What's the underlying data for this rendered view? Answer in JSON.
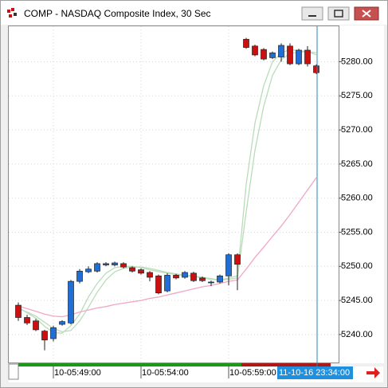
{
  "chart_data": {
    "type": "candlestick",
    "title": "COMP - NASDAQ Composite Index, 30 Sec",
    "categories": [
      null,
      null,
      null,
      null,
      "10-05:49:00",
      null,
      null,
      null,
      null,
      null,
      null,
      null,
      null,
      null,
      "10-05:54:00",
      null,
      null,
      null,
      null,
      null,
      null,
      null,
      null,
      null,
      "10-05:59:00",
      null,
      null,
      null,
      null,
      null,
      null,
      null,
      null,
      null,
      null
    ],
    "open": [
      5244.3,
      5242.5,
      5242.0,
      5240.5,
      5239.4,
      5241.5,
      5241.7,
      5247.8,
      5249.2,
      5249.3,
      5250.2,
      5250.2,
      5250.4,
      5249.8,
      5249.5,
      5249.1,
      5248.6,
      5246.4,
      5248.7,
      5248.4,
      5249.0,
      5248.3,
      5247.6,
      5247.7,
      5248.6,
      5251.7,
      5283.3,
      5282.3,
      5281.8,
      5280.6,
      5280.7,
      5282.3,
      5279.7,
      5281.7,
      5279.4
    ],
    "high": [
      5244.7,
      5242.9,
      5242.3,
      5240.7,
      5241.3,
      5242.1,
      5248.0,
      5249.6,
      5250.0,
      5250.6,
      5250.6,
      5250.7,
      5250.6,
      5250.0,
      5249.7,
      5249.3,
      5248.8,
      5249.0,
      5248.9,
      5249.3,
      5249.2,
      5248.5,
      5247.9,
      5248.8,
      5251.9,
      5251.9,
      5283.5,
      5282.5,
      5282.0,
      5281.5,
      5282.7,
      5282.7,
      5281.9,
      5282.3,
      5279.6
    ],
    "low": [
      5242.0,
      5241.4,
      5240.5,
      5237.7,
      5239.0,
      5241.3,
      5241.5,
      5247.5,
      5249.0,
      5249.1,
      5250.0,
      5250.0,
      5249.7,
      5249.1,
      5248.8,
      5247.8,
      5245.9,
      5246.2,
      5248.1,
      5248.2,
      5247.7,
      5247.7,
      5247.1,
      5247.5,
      5247.2,
      5246.5,
      5281.9,
      5280.8,
      5280.2,
      5280.4,
      5280.0,
      5279.5,
      5279.5,
      5279.3,
      5278.2
    ],
    "close": [
      5242.5,
      5241.7,
      5240.7,
      5239.2,
      5241.0,
      5241.9,
      5247.8,
      5249.3,
      5249.6,
      5250.4,
      5250.4,
      5250.5,
      5249.9,
      5249.3,
      5249.0,
      5248.4,
      5246.1,
      5248.7,
      5248.3,
      5249.1,
      5247.9,
      5247.9,
      5247.7,
      5248.6,
      5251.7,
      5250.3,
      5282.1,
      5281.0,
      5280.4,
      5281.3,
      5282.4,
      5279.7,
      5281.7,
      5279.7,
      5278.4
    ],
    "up_color": "#1f6fd6",
    "down_color": "#cc1010",
    "series": [
      {
        "color": "#b9dcb9",
        "values": [
          5244.0,
          5243.2,
          5242.4,
          5241.2,
          5240.3,
          5240.2,
          5241.3,
          5243.0,
          5245.5,
          5247.5,
          5249.0,
          5249.8,
          5250.0,
          5250.0,
          5249.8,
          5249.5,
          5249.2,
          5249.0,
          5248.8,
          5248.6,
          5248.5,
          5248.3,
          5248.1,
          5248.0,
          5248.3,
          5248.6,
          5262.0,
          5271.0,
          5276.5,
          5280.0,
          5281.3,
          5281.8,
          5281.6,
          5281.5,
          5281.0
        ]
      },
      {
        "color": "#b9dcb9",
        "values": [
          5243.8,
          5243.3,
          5242.7,
          5241.8,
          5240.9,
          5240.4,
          5240.6,
          5242.0,
          5244.0,
          5246.2,
          5248.0,
          5249.2,
          5249.7,
          5249.9,
          5249.9,
          5249.7,
          5249.4,
          5249.1,
          5248.9,
          5248.7,
          5248.6,
          5248.4,
          5248.2,
          5248.0,
          5248.1,
          5248.3,
          5258.0,
          5267.0,
          5273.5,
          5278.0,
          5280.3,
          5281.2,
          5281.4,
          5281.5,
          5281.3
        ]
      },
      {
        "color": "#f2a6c8",
        "values": [
          5244.2,
          5243.8,
          5243.4,
          5243.0,
          5242.7,
          5242.6,
          5242.9,
          5243.3,
          5243.6,
          5243.9,
          5244.1,
          5244.4,
          5244.6,
          5244.8,
          5245.0,
          5245.3,
          5245.5,
          5245.8,
          5246.1,
          5246.4,
          5246.7,
          5247.0,
          5247.2,
          5247.5,
          5247.8,
          5248.0,
          5249.6,
          5251.3,
          5252.8,
          5254.4,
          5255.9,
          5257.6,
          5259.4,
          5261.2,
          5263.0
        ]
      }
    ],
    "ylim": [
      5235.9,
      5285.2
    ],
    "yticks": [
      {
        "value": 5240,
        "label": "5240.00"
      },
      {
        "value": 5245,
        "label": "5245.00"
      },
      {
        "value": 5250,
        "label": "5250.00"
      },
      {
        "value": 5255,
        "label": "5255.00"
      },
      {
        "value": 5260,
        "label": "5260.00"
      },
      {
        "value": 5265,
        "label": "5265.00"
      },
      {
        "value": 5270,
        "label": "5270.00"
      },
      {
        "value": 5275,
        "label": "5275.00"
      },
      {
        "value": 5280,
        "label": "5280.00"
      }
    ],
    "grid": true,
    "cursor_label": "11-10-16 23:34:00"
  }
}
